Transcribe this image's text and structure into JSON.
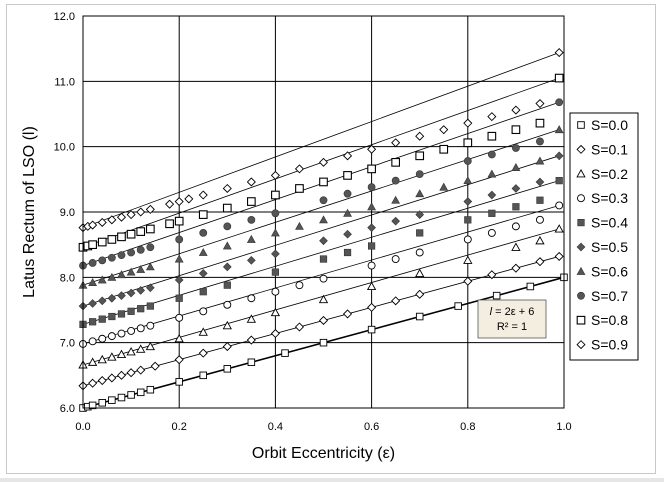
{
  "chart_data": {
    "type": "scatter",
    "title": "",
    "xlabel": "Orbit Eccentricity (ε)",
    "ylabel": "Latus Rectum of LSO (l)",
    "xlim": [
      0.0,
      1.0
    ],
    "ylim": [
      6.0,
      12.0
    ],
    "x_ticks": [
      "0.0",
      "0.2",
      "0.4",
      "0.6",
      "0.8",
      "1.0"
    ],
    "y_ticks": [
      "6.0",
      "7.0",
      "8.0",
      "9.0",
      "10.0",
      "11.0",
      "12.0"
    ],
    "grid": true,
    "legend_position": "right",
    "annotation": {
      "line1_italic": "l",
      "line1_rest": " = 2ε + 6",
      "line2": "R² = 1"
    },
    "series": [
      {
        "name": "S=0.0",
        "marker": "square-open",
        "x": [
          0,
          0.01,
          0.02,
          0.04,
          0.06,
          0.08,
          0.1,
          0.12,
          0.14,
          0.2,
          0.25,
          0.3,
          0.35,
          0.42,
          0.5,
          0.6,
          0.7,
          0.78,
          0.86,
          0.93,
          1.0
        ],
        "y": [
          6.0,
          6.02,
          6.04,
          6.08,
          6.12,
          6.16,
          6.2,
          6.24,
          6.28,
          6.4,
          6.5,
          6.6,
          6.7,
          6.84,
          7.0,
          7.2,
          7.4,
          7.56,
          7.72,
          7.86,
          8.0
        ]
      },
      {
        "name": "S=0.1",
        "marker": "diamond-open",
        "x": [
          0,
          0.02,
          0.04,
          0.06,
          0.08,
          0.1,
          0.12,
          0.15,
          0.2,
          0.25,
          0.3,
          0.35,
          0.4,
          0.45,
          0.5,
          0.55,
          0.6,
          0.65,
          0.7,
          0.8,
          0.85,
          0.9,
          0.95,
          0.99
        ],
        "y": [
          6.34,
          6.38,
          6.42,
          6.46,
          6.5,
          6.54,
          6.58,
          6.64,
          6.74,
          6.84,
          6.94,
          7.04,
          7.14,
          7.24,
          7.34,
          7.44,
          7.54,
          7.64,
          7.74,
          7.94,
          8.04,
          8.14,
          8.24,
          8.32
        ]
      },
      {
        "name": "S=0.2",
        "marker": "triangle-open",
        "x": [
          0,
          0.02,
          0.04,
          0.06,
          0.08,
          0.1,
          0.12,
          0.14,
          0.2,
          0.25,
          0.3,
          0.35,
          0.4,
          0.5,
          0.6,
          0.7,
          0.8,
          0.9,
          0.95,
          0.99
        ],
        "y": [
          6.66,
          6.7,
          6.74,
          6.78,
          6.82,
          6.86,
          6.9,
          6.94,
          7.06,
          7.16,
          7.26,
          7.36,
          7.46,
          7.66,
          7.86,
          8.06,
          8.26,
          8.46,
          8.56,
          8.74
        ]
      },
      {
        "name": "S=0.3",
        "marker": "circle-open",
        "x": [
          0,
          0.02,
          0.04,
          0.06,
          0.08,
          0.1,
          0.12,
          0.14,
          0.2,
          0.25,
          0.3,
          0.35,
          0.4,
          0.45,
          0.5,
          0.6,
          0.65,
          0.7,
          0.8,
          0.85,
          0.9,
          0.95,
          0.99
        ],
        "y": [
          6.98,
          7.02,
          7.06,
          7.1,
          7.14,
          7.18,
          7.22,
          7.26,
          7.38,
          7.48,
          7.58,
          7.68,
          7.78,
          7.88,
          7.98,
          8.18,
          8.28,
          8.38,
          8.58,
          8.68,
          8.78,
          8.88,
          9.1
        ]
      },
      {
        "name": "S=0.4",
        "marker": "square-filled",
        "x": [
          0,
          0.02,
          0.04,
          0.06,
          0.08,
          0.1,
          0.12,
          0.14,
          0.2,
          0.25,
          0.3,
          0.4,
          0.5,
          0.55,
          0.6,
          0.7,
          0.8,
          0.85,
          0.9,
          0.95,
          0.99
        ],
        "y": [
          7.28,
          7.32,
          7.36,
          7.4,
          7.44,
          7.48,
          7.52,
          7.56,
          7.68,
          7.78,
          7.88,
          8.08,
          8.28,
          8.38,
          8.48,
          8.68,
          8.88,
          8.98,
          9.08,
          9.18,
          9.48
        ]
      },
      {
        "name": "S=0.5",
        "marker": "diamond-filled",
        "x": [
          0,
          0.02,
          0.04,
          0.06,
          0.08,
          0.1,
          0.12,
          0.14,
          0.2,
          0.25,
          0.3,
          0.35,
          0.4,
          0.5,
          0.55,
          0.6,
          0.65,
          0.7,
          0.8,
          0.85,
          0.9,
          0.95,
          0.99
        ],
        "y": [
          7.56,
          7.6,
          7.64,
          7.68,
          7.72,
          7.76,
          7.8,
          7.84,
          7.96,
          8.06,
          8.16,
          8.26,
          8.36,
          8.56,
          8.66,
          8.76,
          8.86,
          8.96,
          9.16,
          9.26,
          9.36,
          9.46,
          9.86
        ]
      },
      {
        "name": "S=0.6",
        "marker": "triangle-filled",
        "x": [
          0,
          0.02,
          0.04,
          0.06,
          0.08,
          0.1,
          0.12,
          0.14,
          0.2,
          0.25,
          0.3,
          0.35,
          0.4,
          0.45,
          0.5,
          0.55,
          0.6,
          0.65,
          0.7,
          0.75,
          0.8,
          0.85,
          0.9,
          0.95,
          0.99
        ],
        "y": [
          7.88,
          7.92,
          7.96,
          8.0,
          8.04,
          8.08,
          8.12,
          8.16,
          8.28,
          8.38,
          8.48,
          8.58,
          8.68,
          8.78,
          8.88,
          8.98,
          9.08,
          9.18,
          9.28,
          9.38,
          9.48,
          9.58,
          9.68,
          9.78,
          10.26
        ]
      },
      {
        "name": "S=0.7",
        "marker": "circle-filled",
        "x": [
          0,
          0.02,
          0.04,
          0.06,
          0.08,
          0.1,
          0.12,
          0.14,
          0.2,
          0.25,
          0.3,
          0.35,
          0.4,
          0.5,
          0.55,
          0.6,
          0.65,
          0.7,
          0.8,
          0.85,
          0.9,
          0.95,
          0.99
        ],
        "y": [
          8.18,
          8.22,
          8.26,
          8.3,
          8.34,
          8.38,
          8.42,
          8.46,
          8.58,
          8.68,
          8.78,
          8.88,
          8.98,
          9.18,
          9.28,
          9.38,
          9.48,
          9.58,
          9.78,
          9.88,
          9.98,
          10.08,
          10.68
        ]
      },
      {
        "name": "S=0.8",
        "marker": "square-open-large",
        "x": [
          0,
          0.01,
          0.02,
          0.04,
          0.06,
          0.08,
          0.1,
          0.12,
          0.14,
          0.18,
          0.2,
          0.25,
          0.3,
          0.35,
          0.4,
          0.45,
          0.5,
          0.55,
          0.6,
          0.65,
          0.7,
          0.75,
          0.8,
          0.85,
          0.9,
          0.95,
          0.99
        ],
        "y": [
          8.46,
          8.48,
          8.5,
          8.54,
          8.58,
          8.62,
          8.66,
          8.7,
          8.74,
          8.82,
          8.86,
          8.96,
          9.06,
          9.16,
          9.26,
          9.36,
          9.46,
          9.56,
          9.66,
          9.76,
          9.86,
          9.96,
          10.06,
          10.16,
          10.26,
          10.36,
          11.05
        ]
      },
      {
        "name": "S=0.9",
        "marker": "diamond-open",
        "x": [
          0,
          0.01,
          0.02,
          0.04,
          0.06,
          0.08,
          0.1,
          0.12,
          0.14,
          0.18,
          0.2,
          0.22,
          0.25,
          0.3,
          0.35,
          0.4,
          0.45,
          0.5,
          0.55,
          0.6,
          0.65,
          0.7,
          0.75,
          0.8,
          0.85,
          0.9,
          0.95,
          0.99
        ],
        "y": [
          8.76,
          8.78,
          8.8,
          8.84,
          8.88,
          8.92,
          8.96,
          9.0,
          9.04,
          9.12,
          9.16,
          9.2,
          9.26,
          9.36,
          9.46,
          9.56,
          9.66,
          9.76,
          9.86,
          9.96,
          10.06,
          10.16,
          10.26,
          10.36,
          10.46,
          10.56,
          10.66,
          11.44
        ]
      }
    ]
  }
}
